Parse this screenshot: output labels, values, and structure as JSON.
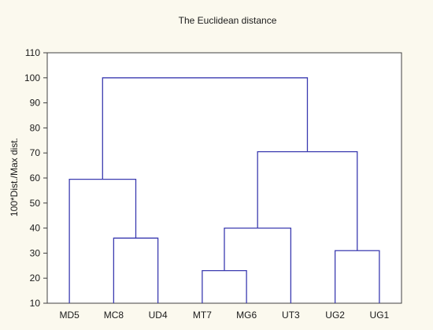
{
  "chart_data": {
    "type": "dendrogram",
    "title": "The Euclidean distance",
    "xlabel": "",
    "ylabel": "100*Dist./Max dist.",
    "ylim": [
      10,
      110
    ],
    "yticks": [
      10,
      20,
      30,
      40,
      50,
      60,
      70,
      80,
      90,
      100,
      110
    ],
    "grid": false,
    "leaves": [
      "MD5",
      "MC8",
      "UD4",
      "MT7",
      "MG6",
      "UT3",
      "UG2",
      "UG1"
    ],
    "merges": [
      {
        "left": "MT7",
        "right": "MG6",
        "height": 23
      },
      {
        "left": "UG2",
        "right": "UG1",
        "height": 31
      },
      {
        "left": "MC8",
        "right": "UD4",
        "height": 36
      },
      {
        "left": "MT7+MG6",
        "right": "UT3",
        "height": 40
      },
      {
        "left": "MD5",
        "right": "MC8+UD4",
        "height": 59.5
      },
      {
        "left": "MT7+MG6+UT3",
        "right": "UG2+UG1",
        "height": 70.5
      },
      {
        "left": "MD5+MC8+UD4",
        "right": "MT7+MG6+UT3+UG2+UG1",
        "height": 100
      }
    ],
    "line_color": "#3b3bb0"
  }
}
